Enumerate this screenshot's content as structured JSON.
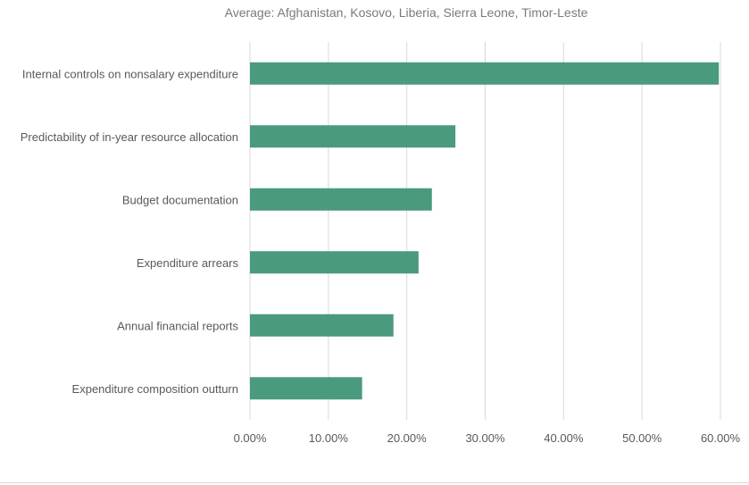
{
  "chart_data": {
    "type": "bar",
    "orientation": "horizontal",
    "title": "Average: Afghanistan, Kosovo, Liberia, Sierra Leone, Timor-Leste",
    "xlabel": "",
    "ylabel": "",
    "categories": [
      "Internal controls on nonsalary expenditure",
      "Predictability of in-year resource allocation",
      "Budget documentation",
      "Expenditure arrears",
      "Annual financial reports",
      "Expenditure composition outturn"
    ],
    "values": [
      59.8,
      26.2,
      23.2,
      21.5,
      18.3,
      14.3
    ],
    "xlim": [
      0,
      60
    ],
    "x_ticks": [
      "0.00%",
      "10.00%",
      "20.00%",
      "30.00%",
      "40.00%",
      "50.00%",
      "60.00%"
    ],
    "grid": "vertical",
    "legend": "none",
    "bar_color": "#4a9a7e",
    "grid_color": "#d9d9d9",
    "text_color": "#595959"
  }
}
